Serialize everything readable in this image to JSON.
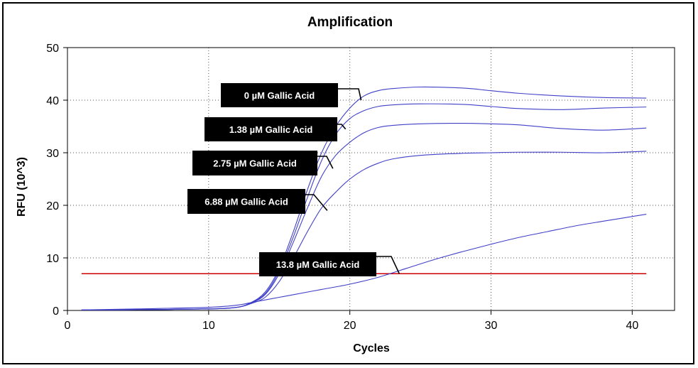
{
  "chart_data": {
    "type": "line",
    "title": "Amplification",
    "xlabel": "Cycles",
    "ylabel": "RFU (10^3)",
    "xlim": [
      0,
      43
    ],
    "ylim": [
      0,
      50
    ],
    "xticks": [
      0,
      10,
      20,
      30,
      40
    ],
    "yticks": [
      0,
      10,
      20,
      30,
      40,
      50
    ],
    "grid": true,
    "threshold": {
      "value": 7,
      "color": "#cc0000"
    },
    "series_color": "#4040c8",
    "series": [
      {
        "name": "0 µM Gallic Acid",
        "x": [
          1,
          5,
          10,
          12,
          13,
          14,
          15,
          16,
          17,
          18,
          19,
          20,
          21,
          22,
          23,
          25,
          28,
          30,
          32,
          35,
          38,
          41
        ],
        "y": [
          0.1,
          0.15,
          0.3,
          0.6,
          1.5,
          3.5,
          8,
          15,
          23,
          30,
          35,
          38.5,
          40.8,
          41.8,
          42.2,
          42.5,
          42.3,
          41.8,
          41.3,
          40.8,
          40.5,
          40.4
        ]
      },
      {
        "name": "1.38 µM Gallic Acid",
        "x": [
          1,
          5,
          10,
          12,
          13,
          14,
          15,
          16,
          17,
          18,
          19,
          20,
          21,
          22,
          23,
          25,
          28,
          30,
          32,
          35,
          38,
          41
        ],
        "y": [
          0.1,
          0.15,
          0.3,
          0.6,
          1.5,
          3.2,
          7.5,
          14,
          21.5,
          28.5,
          33.5,
          36.5,
          38,
          38.8,
          39.1,
          39.3,
          39.2,
          38.8,
          38.4,
          38.2,
          38.5,
          38.7
        ]
      },
      {
        "name": "2.75 µM Gallic Acid",
        "x": [
          1,
          5,
          10,
          12,
          13,
          14,
          15,
          16,
          17,
          18,
          19,
          20,
          21,
          22,
          23,
          25,
          28,
          30,
          32,
          35,
          38,
          41
        ],
        "y": [
          0.1,
          0.15,
          0.3,
          0.6,
          1.4,
          3,
          7,
          13,
          19.5,
          25.5,
          29.5,
          32,
          33.8,
          34.8,
          35.2,
          35.5,
          35.6,
          35.5,
          35.3,
          34.6,
          34.3,
          34.7
        ]
      },
      {
        "name": "6.88 µM Gallic Acid",
        "x": [
          1,
          5,
          10,
          12,
          13,
          14,
          15,
          16,
          17,
          18,
          19,
          20,
          21,
          22,
          23,
          25,
          28,
          30,
          32,
          35,
          38,
          41
        ],
        "y": [
          0.1,
          0.15,
          0.3,
          0.6,
          1.3,
          2.5,
          5.5,
          10,
          15,
          19.5,
          22.5,
          25,
          26.8,
          28,
          28.8,
          29.5,
          29.9,
          30,
          30.1,
          30.1,
          30,
          30.3
        ]
      },
      {
        "name": "13.8 µM Gallic Acid",
        "x": [
          1,
          5,
          10,
          12,
          13,
          14,
          15,
          16,
          18,
          20,
          22,
          24,
          26,
          28,
          30,
          32,
          34,
          36,
          38,
          41
        ],
        "y": [
          0.1,
          0.3,
          0.6,
          1,
          1.5,
          2,
          2.5,
          3,
          4,
          5,
          6.3,
          8,
          9.7,
          11.2,
          12.6,
          13.9,
          15,
          16.1,
          17,
          18.3
        ]
      }
    ],
    "annotations": [
      {
        "label": "0 µM Gallic Acid",
        "at_x": 20.8,
        "at_y": 40
      },
      {
        "label": "1.38 µM Gallic Acid",
        "at_x": 19.7,
        "at_y": 34.5
      },
      {
        "label": "2.75 µM Gallic Acid",
        "at_x": 18.8,
        "at_y": 27
      },
      {
        "label": "6.88 µM Gallic Acid",
        "at_x": 18.4,
        "at_y": 19
      },
      {
        "label": "13.8 µM Gallic Acid",
        "at_x": 23.5,
        "at_y": 7
      }
    ]
  }
}
